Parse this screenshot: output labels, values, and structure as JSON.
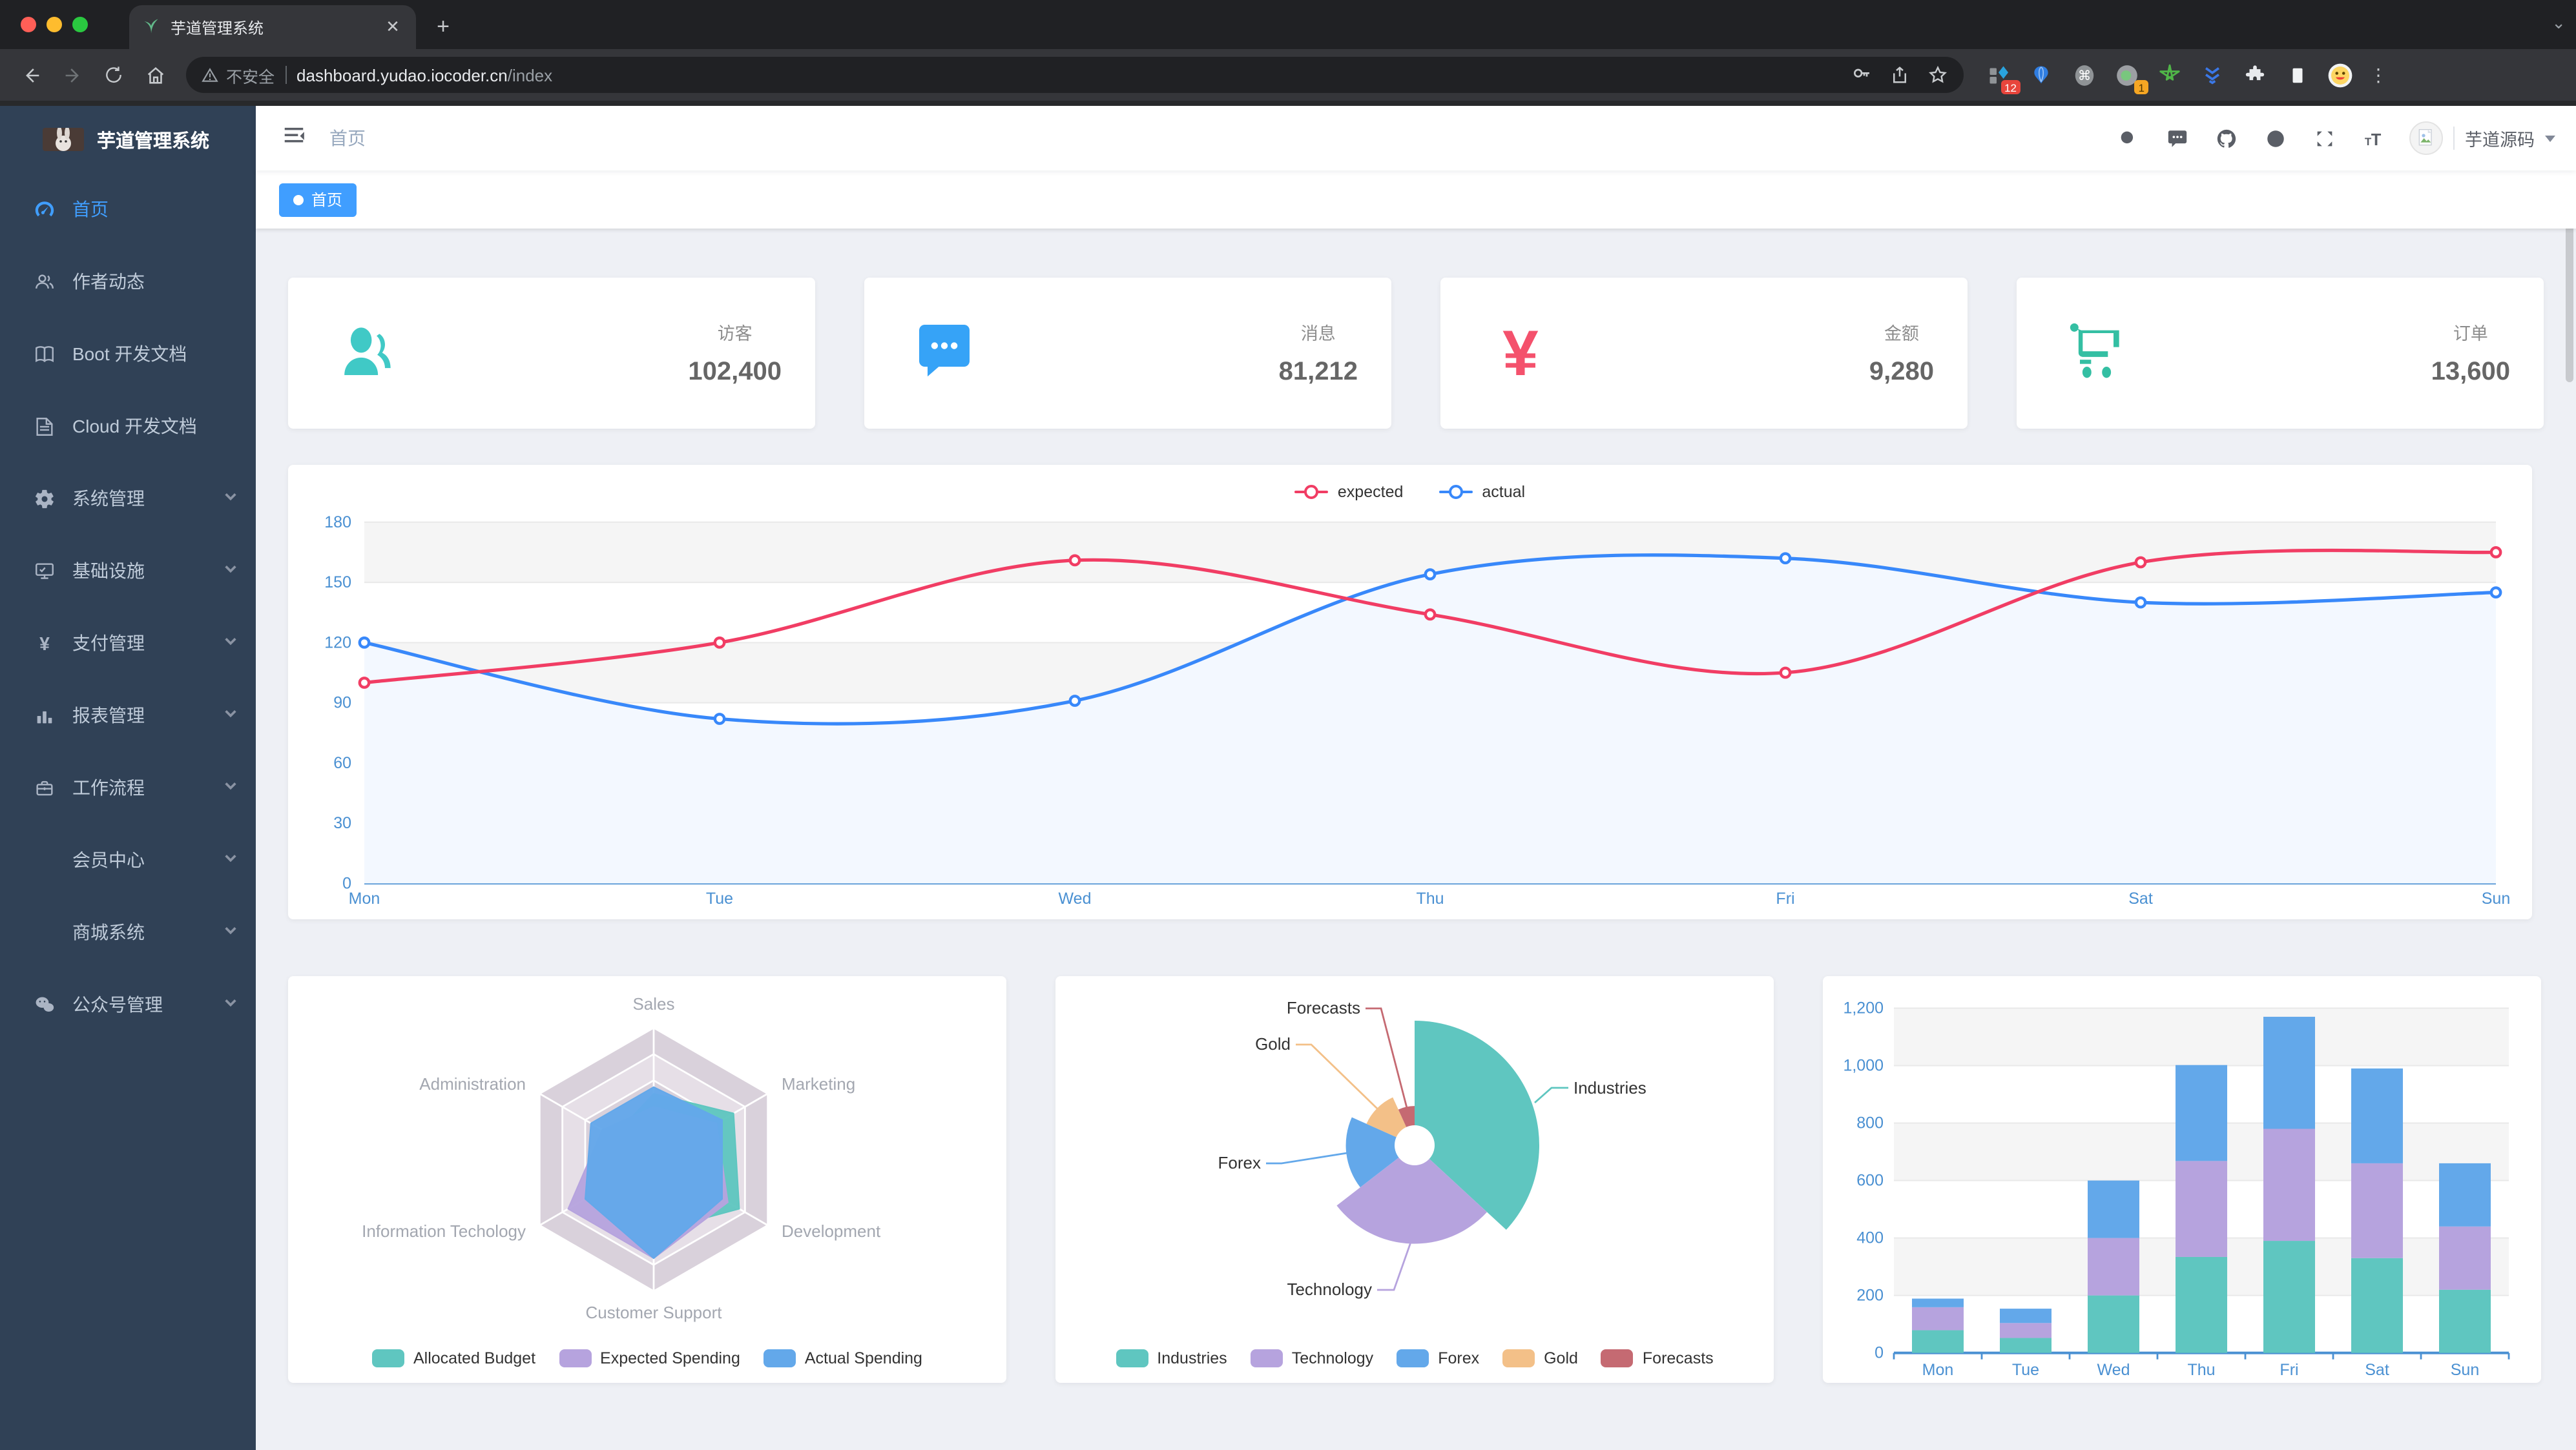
{
  "browser": {
    "tab_title": "芋道管理系统",
    "security_label": "不安全",
    "url_host": "dashboard.yudao.iocoder.cn",
    "url_path": "/index",
    "new_tab_label": "+",
    "close_label": "✕",
    "extension_badge_grid": "12",
    "extension_badge_proxy": "1"
  },
  "sidebar": {
    "title": "芋道管理系统",
    "items": [
      {
        "label": "首页",
        "icon": "dashboard-icon",
        "active": true
      },
      {
        "label": "作者动态",
        "icon": "peoples-icon"
      },
      {
        "label": "Boot 开发文档",
        "icon": "book-icon"
      },
      {
        "label": "Cloud 开发文档",
        "icon": "document-icon"
      },
      {
        "label": "系统管理",
        "icon": "gear-icon",
        "expandable": true
      },
      {
        "label": "基础设施",
        "icon": "monitor-icon",
        "expandable": true
      },
      {
        "label": "支付管理",
        "icon": "yen-icon",
        "expandable": true
      },
      {
        "label": "报表管理",
        "icon": "chart-icon",
        "expandable": true
      },
      {
        "label": "工作流程",
        "icon": "suitcase-icon",
        "expandable": true
      },
      {
        "label": "会员中心",
        "icon": "",
        "expandable": true
      },
      {
        "label": "商城系统",
        "icon": "",
        "expandable": true
      },
      {
        "label": "公众号管理",
        "icon": "wechat-icon",
        "expandable": true
      }
    ]
  },
  "navbar": {
    "breadcrumb": "首页",
    "user_name": "芋道源码"
  },
  "tags": [
    {
      "label": "首页",
      "active": true
    }
  ],
  "stats": [
    {
      "label": "访客",
      "value": "102,400",
      "icon": "people-icon",
      "color": "#40c9c6"
    },
    {
      "label": "消息",
      "value": "81,212",
      "icon": "message-icon",
      "color": "#36a3f7"
    },
    {
      "label": "金额",
      "value": "9,280",
      "icon": "money-icon",
      "color": "#f4516c"
    },
    {
      "label": "订单",
      "value": "13,600",
      "icon": "cart-icon",
      "color": "#34bfa3"
    }
  ],
  "chart_data": [
    {
      "type": "line",
      "categories": [
        "Mon",
        "Tue",
        "Wed",
        "Thu",
        "Fri",
        "Sat",
        "Sun"
      ],
      "series": [
        {
          "name": "expected",
          "color": "#f13d64",
          "values": [
            100,
            120,
            161,
            134,
            105,
            160,
            165
          ]
        },
        {
          "name": "actual",
          "color": "#3888fa",
          "values": [
            120,
            82,
            91,
            154,
            162,
            140,
            145
          ],
          "area_color": "#f3f8ff"
        }
      ],
      "ylim": [
        0,
        180
      ],
      "ytick_interval": 30,
      "axis_label_color": "#4a90d2",
      "grid": true,
      "legend_position": "top"
    },
    {
      "type": "radar",
      "indicators": [
        {
          "name": "Sales",
          "max": 10000
        },
        {
          "name": "Administration",
          "max": 20000
        },
        {
          "name": "Information Techology",
          "max": 20000
        },
        {
          "name": "Customer Support",
          "max": 20000
        },
        {
          "name": "Development",
          "max": 20000
        },
        {
          "name": "Marketing",
          "max": 20000
        }
      ],
      "series": [
        {
          "name": "Allocated Budget",
          "color": "#5fc6c0",
          "values": [
            5000,
            7000,
            12000,
            11000,
            15000,
            14000
          ]
        },
        {
          "name": "Expected Spending",
          "color": "#b6a3de",
          "values": [
            4000,
            9000,
            15000,
            15000,
            13000,
            11000
          ]
        },
        {
          "name": "Actual Spending",
          "color": "#63a8ea",
          "values": [
            5500,
            11000,
            12000,
            15000,
            12000,
            12000
          ]
        }
      ],
      "legend_position": "bottom"
    },
    {
      "type": "pie",
      "rose": true,
      "items": [
        {
          "name": "Industries",
          "value": 320,
          "color": "#5fc6c0"
        },
        {
          "name": "Technology",
          "value": 240,
          "color": "#b6a3de"
        },
        {
          "name": "Forex",
          "value": 149,
          "color": "#63a8ea"
        },
        {
          "name": "Gold",
          "value": 100,
          "color": "#f3c088"
        },
        {
          "name": "Forecasts",
          "value": 59,
          "color": "#c56a72"
        }
      ],
      "legend_position": "bottom"
    },
    {
      "type": "bar",
      "stacked": true,
      "categories": [
        "Mon",
        "Tue",
        "Wed",
        "Thu",
        "Fri",
        "Sat",
        "Sun"
      ],
      "series": [
        {
          "name": "",
          "color": "#5fc6c0",
          "values": [
            79,
            52,
            200,
            334,
            390,
            330,
            220
          ]
        },
        {
          "name": "",
          "color": "#b6a3de",
          "values": [
            80,
            52,
            200,
            334,
            390,
            330,
            220
          ]
        },
        {
          "name": "",
          "color": "#63a8ea",
          "values": [
            30,
            50,
            200,
            334,
            390,
            330,
            220
          ]
        }
      ],
      "ylim": [
        0,
        1200
      ],
      "ytick_interval": 200,
      "axis_label_color": "#4a90d2",
      "grid": true
    }
  ],
  "theme": {
    "accent": "#409eff",
    "sidebar_bg": "#304156",
    "content_bg": "#eef0f5"
  }
}
